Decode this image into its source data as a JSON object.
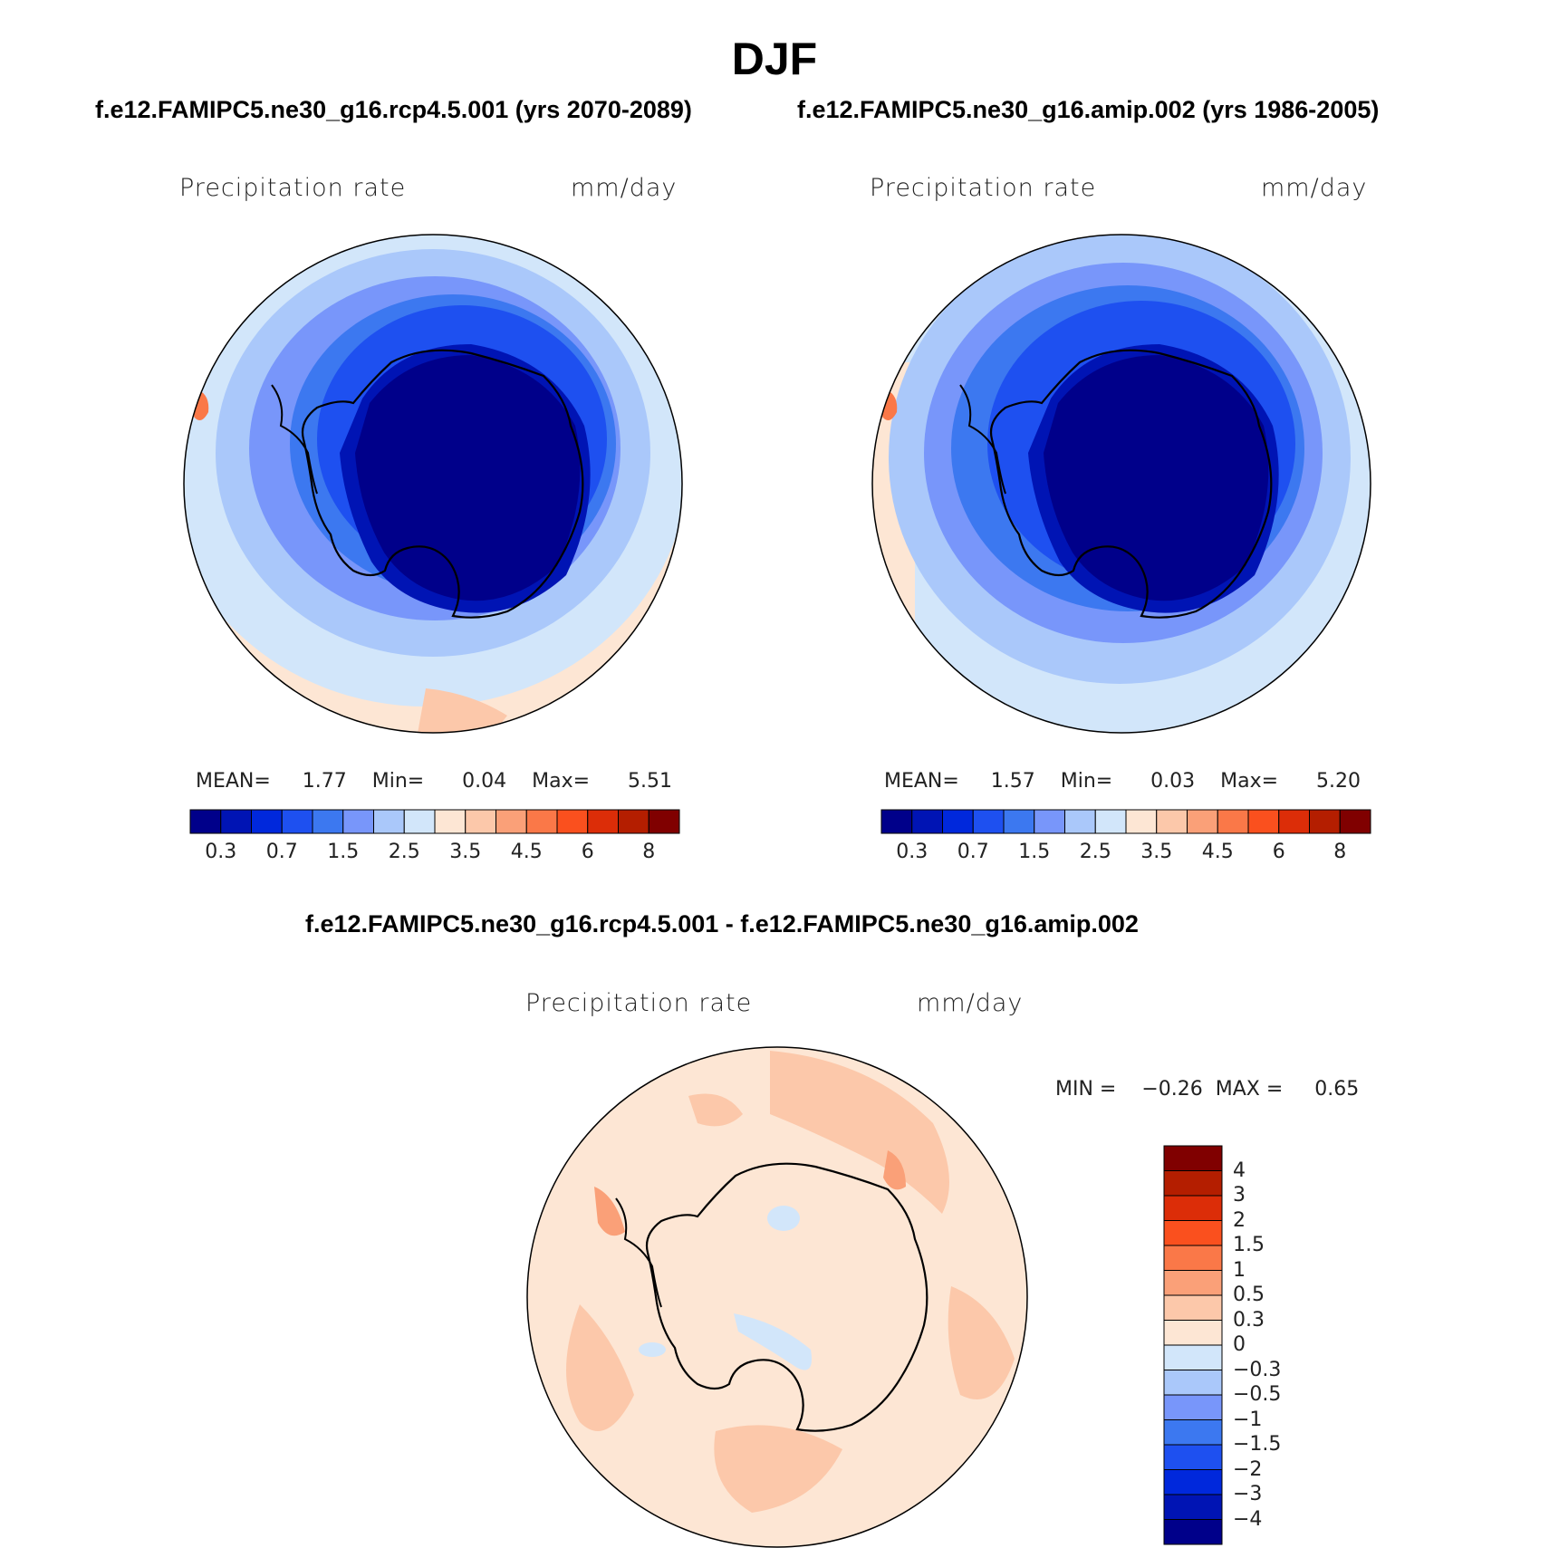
{
  "title": "DJF",
  "panels": [
    {
      "subtitle": "f.e12.FAMIPC5.ne30_g16.rcp4.5.001 (yrs 2070-2089)",
      "variable": "Precipitation  rate",
      "units": "mm/day",
      "stats": "MEAN=     1.77    Min=      0.04    Max=      5.51"
    },
    {
      "subtitle": "f.e12.FAMIPC5.ne30_g16.amip.002 (yrs 1986-2005)",
      "variable": "Precipitation  rate",
      "units": "mm/day",
      "stats": "MEAN=     1.57    Min=      0.03    Max=      5.20"
    },
    {
      "subtitle": "f.e12.FAMIPC5.ne30_g16.rcp4.5.001 - f.e12.FAMIPC5.ne30_g16.amip.002",
      "variable": "Precipitation  rate",
      "units": "mm/day",
      "stats": "MIN =    −0.26  MAX =     0.65"
    }
  ],
  "colorbar_top": {
    "colors": [
      "#00008a",
      "#0014b4",
      "#0028dc",
      "#1e50f0",
      "#3c78f0",
      "#7896fa",
      "#aac8fa",
      "#d2e6fa",
      "#fde6d4",
      "#fcc8aa",
      "#faa078",
      "#fa7848",
      "#fa501e",
      "#dc2d08",
      "#b41e00",
      "#800000"
    ],
    "labels": [
      "0.3",
      "0.7",
      "1.5",
      "2.5",
      "3.5",
      "4.5",
      "6",
      "8"
    ]
  },
  "colorbar_diff": {
    "colors": [
      "#800000",
      "#b41e00",
      "#dc2d08",
      "#fa501e",
      "#fa7848",
      "#faa078",
      "#fcc8aa",
      "#fde6d4",
      "#d2e6fa",
      "#aac8fa",
      "#7896fa",
      "#3c78f0",
      "#1e50f0",
      "#0028dc",
      "#0014b4",
      "#00008a"
    ],
    "labels": [
      "4",
      "3",
      "2",
      "1.5",
      "1",
      "0.5",
      "0.3",
      "0",
      "−0.3",
      "−0.5",
      "−1",
      "−1.5",
      "−2",
      "−3",
      "−4"
    ]
  }
}
